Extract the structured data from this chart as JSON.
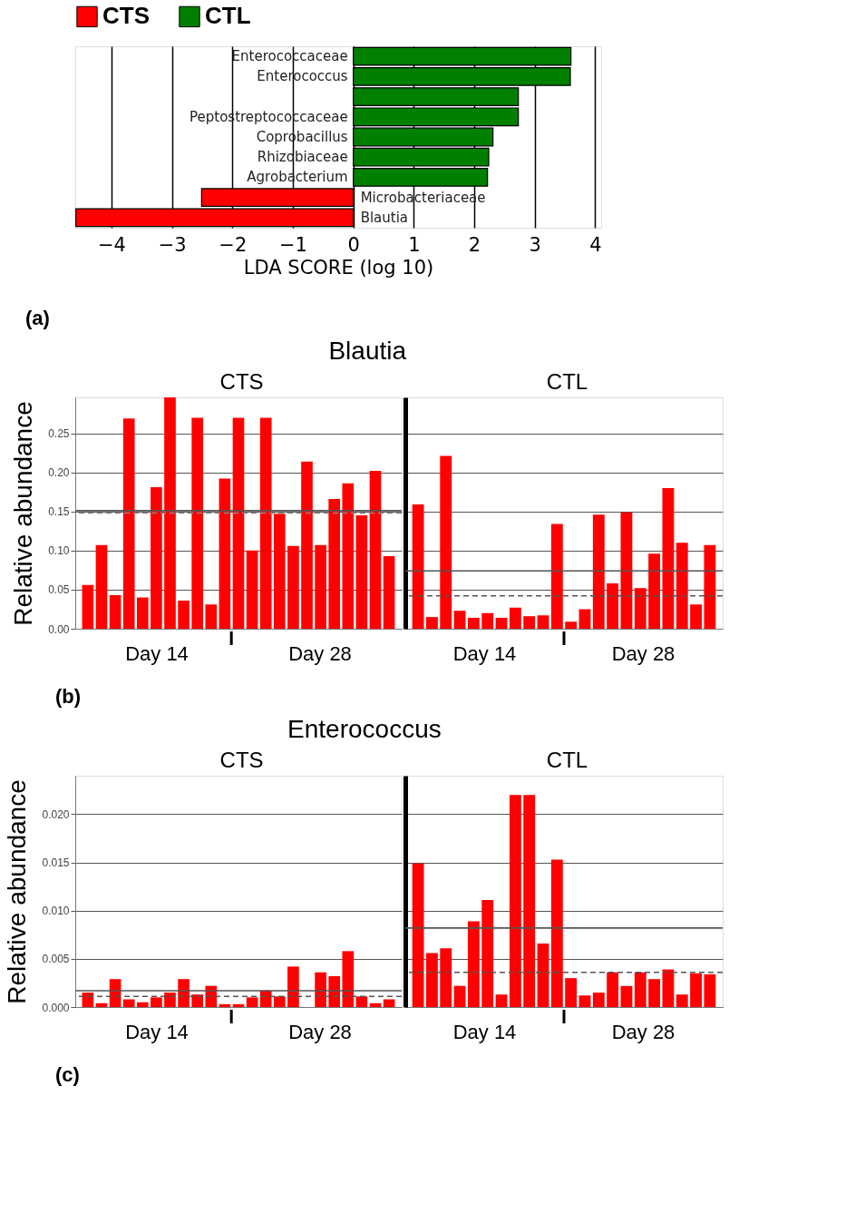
{
  "chart_data": [
    {
      "type": "bar",
      "orientation": "horizontal",
      "categories": [
        "Enterococcaceae",
        "Enterococcus",
        null,
        "Peptostreptococcaceae",
        "Coprobacillus",
        "Rhizobiaceae",
        "Agrobacterium",
        "Microbacteriaceae",
        "Blautia"
      ],
      "series": [
        {
          "name": "CTS",
          "color": "#ff0000",
          "values": [
            null,
            null,
            null,
            null,
            null,
            null,
            null,
            -2.51,
            -4.59
          ]
        },
        {
          "name": "CTL",
          "color": "#007f00",
          "values": [
            3.6,
            3.59,
            2.73,
            2.73,
            2.31,
            2.24,
            2.22,
            null,
            null
          ]
        }
      ],
      "xlim": [
        -4.6,
        4.1
      ],
      "xticks": [
        {
          "value": -4,
          "label": "−4"
        },
        {
          "value": -3,
          "label": "−3"
        },
        {
          "value": -2,
          "label": "−2"
        },
        {
          "value": -1,
          "label": "−1"
        },
        0,
        1,
        2,
        3,
        4
      ],
      "xlabel": "LDA SCORE (log 10)",
      "grid": "x",
      "legend": "top",
      "annotations": [
        "(a)"
      ]
    },
    {
      "type": "bar",
      "title": "Blautia",
      "ylabel": "Relative abundance",
      "categories": [
        null,
        null,
        null,
        null,
        null,
        null,
        null,
        null,
        null,
        null,
        null,
        null,
        null,
        null,
        null,
        null,
        null,
        null,
        null,
        null,
        null,
        null,
        null
      ],
      "values": [
        0.056,
        0.107,
        0.043,
        0.269,
        0.04,
        0.181,
        0.296,
        0.036,
        0.27,
        0.031,
        0.192,
        0.27,
        0.1,
        0.27,
        0.147,
        0.106,
        0.214,
        0.107,
        0.166,
        0.186,
        0.145,
        0.202,
        0.093
      ],
      "color": "#ff0000",
      "ylim": [
        0,
        0.296
      ],
      "yticks": [
        {
          "value": 0,
          "label": "0.00"
        },
        {
          "value": 0.05,
          "label": "0.05"
        },
        {
          "value": 0.1,
          "label": "0.10"
        },
        {
          "value": 0.15,
          "label": "0.15"
        },
        {
          "value": 0.2,
          "label": "0.20"
        },
        {
          "value": 0.25,
          "label": "0.25"
        }
      ],
      "grid": "y",
      "tick_labels": "y",
      "ref_lines": [
        {
          "axis": "y",
          "value": 0.151,
          "color": "#555555",
          "line_style": "solid"
        },
        {
          "axis": "y",
          "value": 0.148,
          "color": "#888888",
          "line_style": "dashed"
        }
      ],
      "annotations": [
        "CTS",
        "Day 14",
        "Day 28",
        "(b)"
      ]
    },
    {
      "type": "bar",
      "categories": [
        null,
        null,
        null,
        null,
        null,
        null,
        null,
        null,
        null,
        null,
        null,
        null,
        null,
        null,
        null,
        null,
        null,
        null,
        null,
        null,
        null,
        null
      ],
      "values": [
        0.159,
        0.015,
        0.221,
        0.023,
        0.014,
        0.02,
        0.014,
        0.027,
        0.016,
        0.017,
        0.134,
        0.009,
        0.025,
        0.146,
        0.058,
        0.149,
        0.052,
        0.096,
        0.18,
        0.11,
        0.031,
        0.107
      ],
      "color": "#ff0000",
      "ylim": [
        0,
        0.296
      ],
      "yticks": [
        0,
        0.05,
        0.1,
        0.15,
        0.2,
        0.25
      ],
      "grid": "y",
      "tick_labels": false,
      "ref_lines": [
        {
          "axis": "y",
          "value": 0.074,
          "color": "#555555",
          "line_style": "solid"
        },
        {
          "axis": "y",
          "value": 0.042,
          "color": "#555555",
          "line_style": "dashed"
        }
      ],
      "annotations": [
        "CTL",
        "Day 14",
        "Day 28"
      ]
    },
    {
      "type": "bar",
      "title": "Enterococcus",
      "ylabel": "Relative abundance",
      "categories": [
        null,
        null,
        null,
        null,
        null,
        null,
        null,
        null,
        null,
        null,
        null,
        null,
        null,
        null,
        null,
        null,
        null,
        null,
        null,
        null,
        null,
        null,
        null
      ],
      "values": [
        0.0015,
        0.0004,
        0.0029,
        0.0008,
        0.0005,
        0.001,
        0.0015,
        0.0029,
        0.0013,
        0.0022,
        0.0003,
        0.0003,
        0.001,
        0.0017,
        0.0011,
        0.0042,
        0.0,
        0.0036,
        0.0032,
        0.0058,
        0.0011,
        0.0004,
        0.0008
      ],
      "color": "#ff0000",
      "ylim": [
        0,
        0.024
      ],
      "yticks": [
        {
          "value": 0,
          "label": "0.000"
        },
        {
          "value": 0.005,
          "label": "0.005"
        },
        {
          "value": 0.01,
          "label": "0.010"
        },
        {
          "value": 0.015,
          "label": "0.015"
        },
        {
          "value": 0.02,
          "label": "0.020"
        }
      ],
      "grid": "y",
      "tick_labels": "y",
      "ref_lines": [
        {
          "axis": "y",
          "value": 0.0017,
          "color": "#555555",
          "line_style": "solid"
        },
        {
          "axis": "y",
          "value": 0.0011,
          "color": "#555555",
          "line_style": "dashed"
        }
      ],
      "annotations": [
        "CTS",
        "Day 14",
        "Day 28",
        "(c)"
      ]
    },
    {
      "type": "bar",
      "categories": [
        null,
        null,
        null,
        null,
        null,
        null,
        null,
        null,
        null,
        null,
        null,
        null,
        null,
        null,
        null,
        null,
        null,
        null,
        null,
        null,
        null,
        null
      ],
      "values": [
        0.0149,
        0.0056,
        0.0061,
        0.0022,
        0.0089,
        0.0111,
        0.0013,
        0.022,
        0.022,
        0.0066,
        0.0153,
        0.003,
        0.0012,
        0.0015,
        0.0036,
        0.0022,
        0.0036,
        0.0029,
        0.0039,
        0.0013,
        0.0035,
        0.0034
      ],
      "color": "#ff0000",
      "ylim": [
        0,
        0.024
      ],
      "yticks": [
        0,
        0.005,
        0.01,
        0.015,
        0.02
      ],
      "grid": "y",
      "tick_labels": false,
      "ref_lines": [
        {
          "axis": "y",
          "value": 0.0082,
          "color": "#555555",
          "line_style": "solid"
        },
        {
          "axis": "y",
          "value": 0.0036,
          "color": "#555555",
          "line_style": "dashed"
        }
      ],
      "annotations": [
        "CTL",
        "Day 14",
        "Day 28"
      ]
    }
  ]
}
